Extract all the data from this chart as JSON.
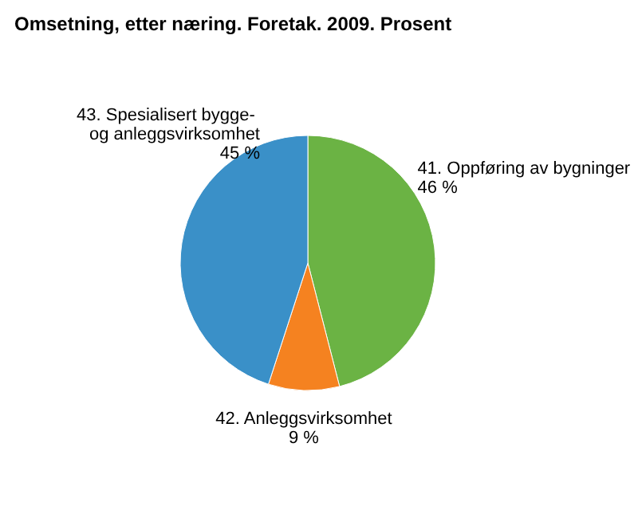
{
  "chart_data": {
    "type": "pie",
    "title": "Omsetning, etter næring. Foretak. 2009. Prosent",
    "categories": [
      "41. Oppføring av bygninger",
      "42. Anleggsvirksomhet",
      "43. Spesialisert bygge- og anleggsvirksomhet"
    ],
    "values": [
      46,
      9,
      45
    ],
    "value_labels": [
      "46 %",
      "9 %",
      "45 %"
    ],
    "colors": [
      "#6bb344",
      "#f58220",
      "#3a90c8"
    ],
    "legend": false
  }
}
